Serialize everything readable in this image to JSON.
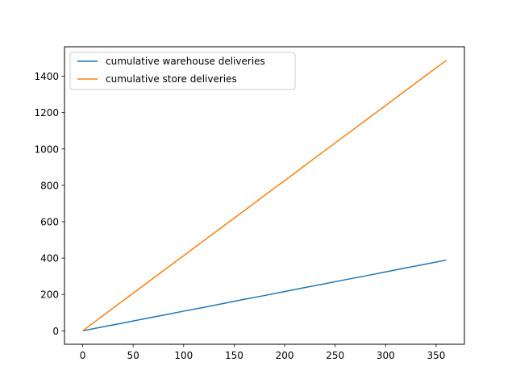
{
  "chart_data": {
    "type": "line",
    "title": "",
    "xlabel": "",
    "ylabel": "",
    "xlim": [
      -18,
      378
    ],
    "ylim": [
      -74,
      1562
    ],
    "xticks": [
      0,
      50,
      100,
      150,
      200,
      250,
      300,
      350
    ],
    "yticks": [
      0,
      200,
      400,
      600,
      800,
      1000,
      1200,
      1400
    ],
    "grid": false,
    "legend_position": "top-left",
    "series": [
      {
        "name": "cumulative warehouse deliveries",
        "color": "#1f77b4",
        "x": [
          0,
          20,
          40,
          60,
          80,
          100,
          120,
          140,
          160,
          180,
          200,
          220,
          240,
          260,
          280,
          300,
          320,
          340,
          360
        ],
        "y": [
          0,
          22,
          43,
          65,
          86,
          108,
          129,
          151,
          173,
          194,
          216,
          238,
          259,
          281,
          302,
          324,
          346,
          367,
          389
        ]
      },
      {
        "name": "cumulative store deliveries",
        "color": "#ff7f0e",
        "x": [
          0,
          20,
          40,
          60,
          80,
          100,
          120,
          140,
          160,
          180,
          200,
          220,
          240,
          260,
          280,
          300,
          320,
          340,
          360
        ],
        "y": [
          0,
          83,
          166,
          248,
          331,
          413,
          496,
          579,
          661,
          744,
          826,
          909,
          992,
          1074,
          1157,
          1239,
          1322,
          1405,
          1487
        ]
      }
    ]
  }
}
